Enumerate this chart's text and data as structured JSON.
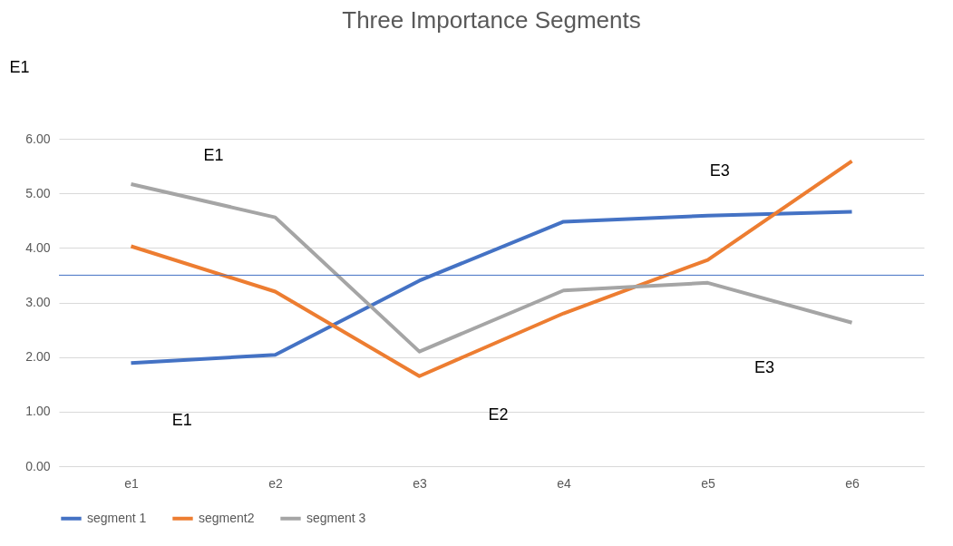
{
  "chart_data": {
    "type": "line",
    "title": "Three Importance Segments",
    "categories": [
      "e1",
      "e2",
      "e3",
      "e4",
      "e5",
      "e6"
    ],
    "series": [
      {
        "name": "segment 1",
        "color": "#4472c4",
        "values": [
          1.89,
          2.04,
          3.4,
          4.48,
          4.59,
          4.66
        ]
      },
      {
        "name": "segment2",
        "color": "#ed7d31",
        "values": [
          4.03,
          3.2,
          1.65,
          2.8,
          3.78,
          5.59
        ]
      },
      {
        "name": "segment 3",
        "color": "#a5a5a5",
        "values": [
          5.17,
          4.56,
          2.1,
          3.22,
          3.36,
          2.63
        ]
      }
    ],
    "ylim": [
      0,
      6
    ],
    "yticks": [
      {
        "value": 0,
        "label": "0.00"
      },
      {
        "value": 1,
        "label": "1.00"
      },
      {
        "value": 2,
        "label": "2.00"
      },
      {
        "value": 3,
        "label": "3.00"
      },
      {
        "value": 4,
        "label": "4.00"
      },
      {
        "value": 5,
        "label": "5.00"
      },
      {
        "value": 6,
        "label": "6.00"
      }
    ],
    "ref_lines": [
      {
        "axis": "y",
        "value": 3.5,
        "color": "#4472c4"
      }
    ],
    "annotations": [
      "E1",
      "E1",
      "E1",
      "E2",
      "E3",
      "E3"
    ],
    "grid": "y",
    "legend": "bottom",
    "marker": "none",
    "line_style": "solid"
  }
}
